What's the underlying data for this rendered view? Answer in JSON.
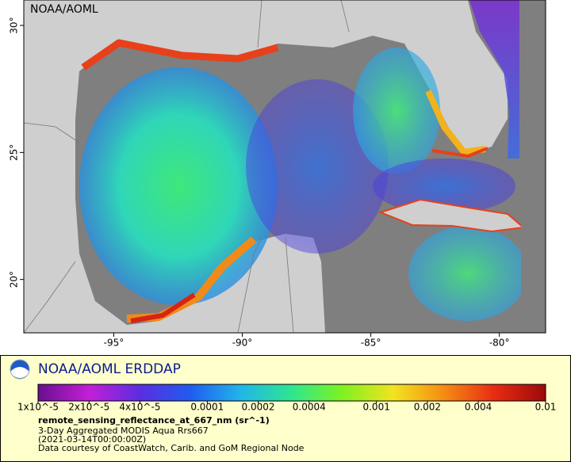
{
  "map": {
    "label": "NOAA/AOML",
    "xlim": [
      -98.5,
      -78.2
    ],
    "ylim": [
      17.9,
      31
    ],
    "xticks": [
      {
        "value": -95,
        "label": "-95°"
      },
      {
        "value": -90,
        "label": "-90°"
      },
      {
        "value": -85,
        "label": "-85°"
      },
      {
        "value": -80,
        "label": "-80°"
      }
    ],
    "yticks": [
      {
        "value": 20,
        "label": "20°"
      },
      {
        "value": 25,
        "label": "25°"
      },
      {
        "value": 30,
        "label": "30°"
      }
    ]
  },
  "legend": {
    "title": "NOAA/AOML ERDDAP",
    "colorbar": {
      "scale": "log",
      "lim": [
        1e-05,
        0.01
      ],
      "ticks": [
        {
          "value": 1e-05,
          "label": "1x10^-5"
        },
        {
          "value": 2e-05,
          "label": "2x10^-5"
        },
        {
          "value": 4e-05,
          "label": "4x10^-5"
        },
        0.0001,
        0.0002,
        0.0004,
        0.001,
        0.002,
        0.004,
        0.01
      ],
      "palette": [
        "#6a0f8f",
        "#c21fd6",
        "#5b2de0",
        "#1f5cf0",
        "#21b6e8",
        "#2ee68f",
        "#7ff21f",
        "#f2e31f",
        "#f58c12",
        "#e82a12",
        "#9a0a0a"
      ]
    },
    "variable": "remote_sensing_reflectance_at_667_nm (sr^-1)",
    "lines": [
      "3-Day Aggregated MODIS Aqua Rrs667",
      "(2021-03-14T00:00:00Z)",
      "Data courtesy of CoastWatch, Carib. and GoM Regional Node"
    ]
  }
}
